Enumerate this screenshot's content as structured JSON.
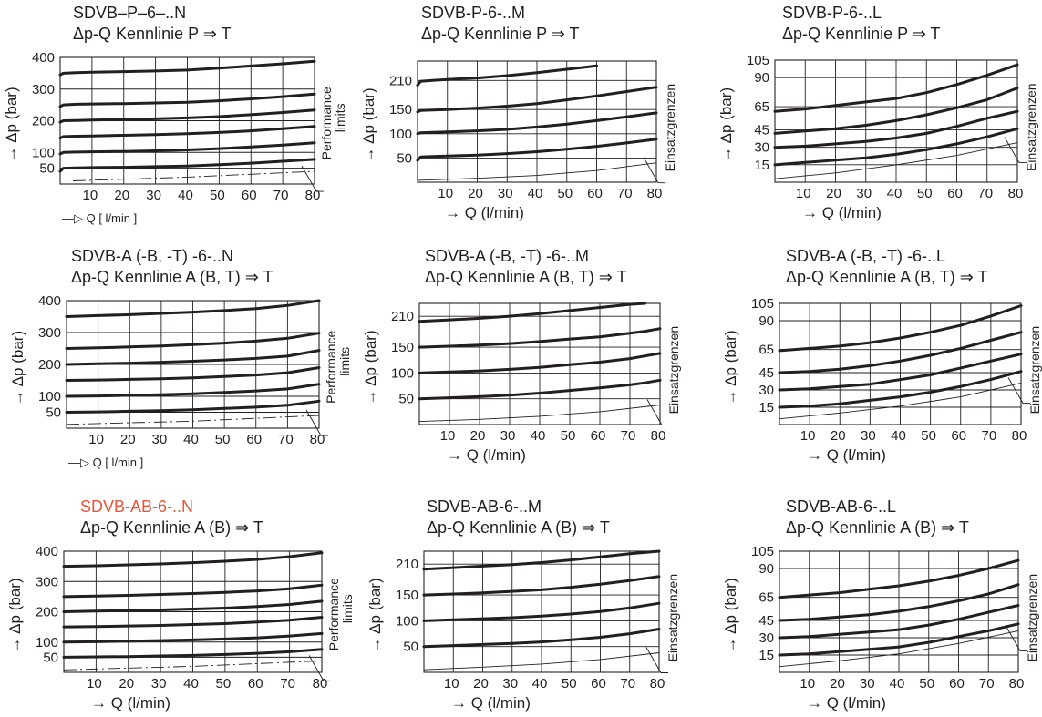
{
  "colors": {
    "ink": "#231f20",
    "highlight": "#e8553a",
    "background": "#ffffff"
  },
  "chart_data": [
    {
      "type": "line",
      "title": "SDVB–P–6–..N",
      "subtitle": "Δp-Q Kennlinie P ⇒ T",
      "title_color": "#231f20",
      "xlabel": "—▷ Q  [ l/min ]",
      "ylabel": "→ Δp (bar)",
      "xlim": [
        0,
        80
      ],
      "ylim": [
        0,
        400
      ],
      "x_ticks": [
        10,
        20,
        30,
        40,
        50,
        60,
        70,
        80
      ],
      "y_ticks": [
        50,
        100,
        200,
        300,
        400
      ],
      "limit_label": [
        "Performance",
        "limits"
      ],
      "x": [
        0,
        1,
        5,
        10,
        20,
        30,
        40,
        50,
        60,
        70,
        80
      ],
      "series": [
        {
          "values": [
            345,
            350,
            352,
            353,
            355,
            357,
            360,
            366,
            373,
            380,
            388
          ]
        },
        {
          "values": [
            245,
            250,
            252,
            253,
            254,
            256,
            258,
            263,
            269,
            276,
            284
          ]
        },
        {
          "values": [
            195,
            200,
            201,
            202,
            204,
            206,
            209,
            213,
            219,
            226,
            234
          ]
        },
        {
          "values": [
            145,
            150,
            151,
            152,
            154,
            156,
            159,
            163,
            168,
            175,
            182
          ]
        },
        {
          "values": [
            95,
            100,
            101,
            102,
            103,
            105,
            108,
            112,
            117,
            123,
            130
          ]
        },
        {
          "values": [
            40,
            50,
            51,
            52,
            53,
            55,
            57,
            61,
            66,
            72,
            78
          ]
        }
      ],
      "limit_line": {
        "style": "dash-dot",
        "x": [
          4,
          40,
          80
        ],
        "y": [
          10,
          22,
          40
        ]
      },
      "grid": true
    },
    {
      "type": "line",
      "title": "SDVB-P-6-..M",
      "subtitle": "Δp-Q Kennlinie P ⇒ T",
      "title_color": "#231f20",
      "xlabel": "→ Q (l/min)",
      "ylabel": "→ Δp (bar)",
      "xlim": [
        0,
        80
      ],
      "ylim": [
        0,
        250
      ],
      "x_ticks": [
        10,
        20,
        30,
        40,
        50,
        60,
        70,
        80
      ],
      "y_ticks": [
        50,
        100,
        150,
        210
      ],
      "limit_label": [
        "Einsatzgrenzen"
      ],
      "x": [
        0,
        1,
        5,
        10,
        20,
        30,
        40,
        50,
        60,
        70,
        80
      ],
      "series": [
        {
          "values": [
            200,
            208,
            210,
            212,
            215,
            220,
            226,
            233,
            240,
            null,
            null
          ]
        },
        {
          "values": [
            145,
            148,
            149,
            150,
            153,
            157,
            162,
            170,
            178,
            187,
            196
          ]
        },
        {
          "values": [
            100,
            102,
            103,
            104,
            106,
            109,
            114,
            120,
            127,
            135,
            143
          ]
        },
        {
          "values": [
            45,
            52,
            53,
            54,
            56,
            59,
            63,
            68,
            74,
            81,
            89
          ]
        }
      ],
      "limit_line": {
        "style": "solid",
        "x": [
          0,
          20,
          40,
          60,
          80
        ],
        "y": [
          4,
          8,
          14,
          24,
          40
        ]
      },
      "grid": true
    },
    {
      "type": "line",
      "title": "SDVB-P-6-..L",
      "subtitle": "Δp-Q Kennlinie P ⇒ T",
      "title_color": "#231f20",
      "xlabel": "→ Q (l/min)",
      "ylabel": "→ Δp (bar)",
      "xlim": [
        0,
        80
      ],
      "ylim": [
        0,
        105
      ],
      "x_ticks": [
        10,
        20,
        30,
        40,
        50,
        60,
        70,
        80
      ],
      "y_ticks": [
        15,
        30,
        45,
        65,
        90,
        105
      ],
      "limit_label": [
        "Einsatzgrenzen"
      ],
      "x": [
        0,
        10,
        20,
        30,
        40,
        50,
        60,
        70,
        80
      ],
      "series": [
        {
          "values": [
            61,
            63,
            66,
            69,
            72,
            77,
            84,
            92,
            101
          ]
        },
        {
          "values": [
            42,
            44,
            46,
            49,
            53,
            58,
            64,
            71,
            81
          ]
        },
        {
          "values": [
            30,
            31,
            33,
            35,
            38,
            42,
            48,
            55,
            61
          ]
        },
        {
          "values": [
            15,
            17,
            19,
            21,
            24,
            28,
            33,
            39,
            46
          ]
        }
      ],
      "limit_line": {
        "style": "solid",
        "x": [
          0,
          20,
          40,
          60,
          80
        ],
        "y": [
          3,
          8,
          15,
          23,
          34
        ]
      },
      "grid": true
    },
    {
      "type": "line",
      "title": "SDVB-A (-B, -T) -6-..N",
      "subtitle": "Δp-Q Kennlinie A (B, T) ⇒ T",
      "title_color": "#231f20",
      "xlabel": "—▷ Q  [ l/min ]",
      "ylabel": "→ Δp (bar)",
      "xlim": [
        0,
        80
      ],
      "ylim": [
        0,
        400
      ],
      "x_ticks": [
        10,
        20,
        30,
        40,
        50,
        60,
        70,
        80
      ],
      "y_ticks": [
        50,
        100,
        200,
        300,
        400
      ],
      "limit_label": [
        "Performance",
        "limits"
      ],
      "x": [
        0,
        10,
        20,
        30,
        40,
        50,
        60,
        70,
        80
      ],
      "series": [
        {
          "values": [
            350,
            353,
            356,
            360,
            364,
            369,
            375,
            385,
            400
          ]
        },
        {
          "values": [
            250,
            252,
            255,
            258,
            262,
            267,
            273,
            282,
            298
          ]
        },
        {
          "values": [
            200,
            202,
            204,
            207,
            210,
            214,
            219,
            226,
            244
          ]
        },
        {
          "values": [
            150,
            151,
            153,
            155,
            158,
            162,
            167,
            174,
            190
          ]
        },
        {
          "values": [
            100,
            101,
            103,
            105,
            108,
            112,
            117,
            123,
            138
          ]
        },
        {
          "values": [
            50,
            51,
            53,
            55,
            58,
            62,
            66,
            72,
            85
          ]
        }
      ],
      "limit_line": {
        "style": "dash-dot",
        "x": [
          0,
          40,
          80
        ],
        "y": [
          12,
          22,
          40
        ]
      },
      "grid": true
    },
    {
      "type": "line",
      "title": "SDVB-A (-B, -T) -6-..M",
      "subtitle": "Δp-Q Kennlinie A (B, T) ⇒ T",
      "title_color": "#231f20",
      "xlabel": "→ Q (l/min)",
      "ylabel": "→ Δp (bar)",
      "xlim": [
        0,
        80
      ],
      "ylim": [
        0,
        235
      ],
      "x_ticks": [
        10,
        20,
        30,
        40,
        50,
        60,
        70,
        80
      ],
      "y_ticks": [
        50,
        100,
        150,
        210
      ],
      "limit_label": [
        "Einsatzgrenzen"
      ],
      "x": [
        0,
        10,
        20,
        30,
        40,
        50,
        60,
        70,
        75,
        80
      ],
      "series": [
        {
          "values": [
            200,
            203,
            206,
            210,
            215,
            221,
            227,
            233,
            235,
            null
          ]
        },
        {
          "values": [
            150,
            152,
            154,
            157,
            161,
            166,
            170,
            177,
            181,
            186
          ]
        },
        {
          "values": [
            100,
            102,
            104,
            107,
            111,
            116,
            121,
            128,
            133,
            138
          ]
        },
        {
          "values": [
            50,
            52,
            54,
            57,
            61,
            66,
            71,
            77,
            81,
            86
          ]
        }
      ],
      "limit_line": {
        "style": "solid",
        "x": [
          0,
          20,
          40,
          60,
          80
        ],
        "y": [
          6,
          10,
          16,
          25,
          38
        ]
      },
      "grid": true
    },
    {
      "type": "line",
      "title": "SDVB-A (-B, -T) -6-..L",
      "subtitle": "Δp-Q Kennlinie A (B, T) ⇒ T",
      "title_color": "#231f20",
      "xlabel": "→ Q (l/min)",
      "ylabel": "→ Δp (bar)",
      "xlim": [
        0,
        80
      ],
      "ylim": [
        0,
        105
      ],
      "x_ticks": [
        10,
        20,
        30,
        40,
        50,
        60,
        70,
        80
      ],
      "y_ticks": [
        15,
        30,
        45,
        65,
        90,
        105
      ],
      "limit_label": [
        "Einsatzgrenzen"
      ],
      "x": [
        0,
        10,
        20,
        30,
        40,
        50,
        60,
        70,
        80
      ],
      "series": [
        {
          "values": [
            64,
            66,
            68,
            71,
            75,
            80,
            86,
            94,
            103
          ]
        },
        {
          "values": [
            45,
            46,
            48,
            51,
            55,
            60,
            66,
            73,
            80
          ]
        },
        {
          "values": [
            30,
            31,
            33,
            35,
            39,
            43,
            49,
            55,
            61
          ]
        },
        {
          "values": [
            15,
            16,
            18,
            21,
            24,
            28,
            33,
            39,
            46
          ]
        }
      ],
      "limit_line": {
        "style": "solid",
        "x": [
          0,
          20,
          40,
          60,
          80
        ],
        "y": [
          5,
          10,
          16,
          24,
          36
        ]
      },
      "grid": true
    },
    {
      "type": "line",
      "title": "SDVB-AB-6-..N",
      "subtitle": "Δp-Q Kennlinie A (B) ⇒ T",
      "title_color": "#e8553a",
      "xlabel": "→ Q (l/min)",
      "ylabel": "→ Δp (bar)",
      "xlim": [
        0,
        80
      ],
      "ylim": [
        0,
        400
      ],
      "x_ticks": [
        10,
        20,
        30,
        40,
        50,
        60,
        70,
        80
      ],
      "y_ticks": [
        50,
        100,
        200,
        300,
        400
      ],
      "limit_label": [
        "Performance",
        "limits"
      ],
      "x": [
        0,
        10,
        20,
        30,
        40,
        50,
        60,
        70,
        80
      ],
      "series": [
        {
          "values": [
            350,
            352,
            355,
            358,
            362,
            367,
            373,
            382,
            395
          ]
        },
        {
          "values": [
            250,
            252,
            254,
            257,
            260,
            264,
            269,
            276,
            288
          ]
        },
        {
          "values": [
            200,
            202,
            204,
            206,
            209,
            212,
            217,
            224,
            235
          ]
        },
        {
          "values": [
            150,
            151,
            153,
            155,
            158,
            161,
            166,
            172,
            182
          ]
        },
        {
          "values": [
            100,
            101,
            103,
            105,
            107,
            110,
            114,
            120,
            128
          ]
        },
        {
          "values": [
            50,
            51,
            52,
            54,
            56,
            59,
            63,
            68,
            76
          ]
        }
      ],
      "limit_line": {
        "style": "dash-dot",
        "x": [
          0,
          40,
          80
        ],
        "y": [
          8,
          20,
          38
        ]
      },
      "grid": true
    },
    {
      "type": "line",
      "title": "SDVB-AB-6-..M",
      "subtitle": "Δp-Q Kennlinie A (B) ⇒ T",
      "title_color": "#231f20",
      "xlabel": "→ Q (l/min)",
      "ylabel": "→ Δp (bar)",
      "xlim": [
        0,
        80
      ],
      "ylim": [
        0,
        235
      ],
      "x_ticks": [
        10,
        20,
        30,
        40,
        50,
        60,
        70,
        80
      ],
      "y_ticks": [
        50,
        100,
        150,
        210
      ],
      "limit_label": [
        "Einsatzgrenzen"
      ],
      "x": [
        0,
        10,
        20,
        30,
        40,
        50,
        60,
        70,
        80
      ],
      "series": [
        {
          "values": [
            200,
            203,
            206,
            209,
            213,
            218,
            224,
            230,
            236
          ]
        },
        {
          "values": [
            150,
            152,
            154,
            157,
            160,
            165,
            171,
            178,
            186
          ]
        },
        {
          "values": [
            100,
            102,
            104,
            106,
            109,
            113,
            118,
            125,
            134
          ]
        },
        {
          "values": [
            50,
            52,
            54,
            56,
            59,
            63,
            68,
            75,
            84
          ]
        }
      ],
      "limit_line": {
        "style": "solid",
        "x": [
          0,
          20,
          40,
          60,
          80
        ],
        "y": [
          5,
          10,
          16,
          25,
          38
        ]
      },
      "grid": true
    },
    {
      "type": "line",
      "title": "SDVB-AB-6-..L",
      "subtitle": "Δp-Q Kennlinie A (B) ⇒ T",
      "title_color": "#231f20",
      "xlabel": "→ Q (l/min)",
      "ylabel": "→ Δp (bar)",
      "xlim": [
        0,
        80
      ],
      "ylim": [
        0,
        105
      ],
      "x_ticks": [
        10,
        20,
        30,
        40,
        50,
        60,
        70,
        80
      ],
      "y_ticks": [
        15,
        30,
        45,
        65,
        90,
        105
      ],
      "limit_label": [
        "Einsatzgrenzen"
      ],
      "x": [
        0,
        10,
        20,
        30,
        40,
        50,
        60,
        70,
        80
      ],
      "series": [
        {
          "values": [
            65,
            67,
            69,
            72,
            75,
            79,
            84,
            90,
            97
          ]
        },
        {
          "values": [
            45,
            46,
            48,
            50,
            53,
            57,
            62,
            68,
            76
          ]
        },
        {
          "values": [
            30,
            31,
            33,
            35,
            37,
            41,
            46,
            52,
            58
          ]
        },
        {
          "values": [
            15,
            16,
            18,
            20,
            22,
            26,
            31,
            36,
            42
          ]
        }
      ],
      "limit_line": {
        "style": "solid",
        "x": [
          0,
          20,
          40,
          60,
          80
        ],
        "y": [
          5,
          10,
          16,
          25,
          36
        ]
      },
      "grid": true
    }
  ]
}
